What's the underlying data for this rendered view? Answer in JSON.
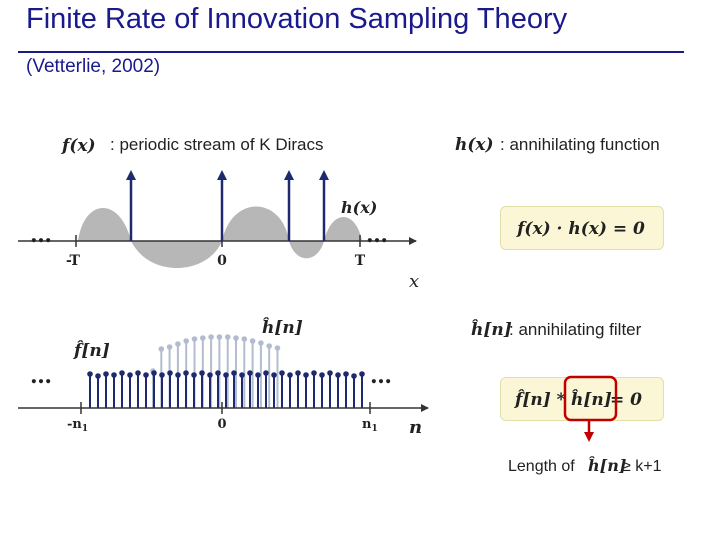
{
  "slide": {
    "title": "Finite Rate of Innovation Sampling Theory",
    "subtitle": "(Vetterlie, 2002)"
  },
  "top_plot": {
    "signal_symbol": "f(x)",
    "signal_desc": " : periodic stream of K Diracs",
    "annihilator_symbol": "h(x)",
    "ellipsis_left": "…",
    "ellipsis_right": "…",
    "tick_left": "-T",
    "tick_center": "0",
    "tick_right": "T",
    "axis_var": "x"
  },
  "right_panel": {
    "h_symbol": "h(x)",
    "h_desc": " : annihilating function",
    "eq1": "f(x) · h(x) = 0",
    "hn_symbol": "ĥ[n]",
    "hn_desc": " : annihilating filter",
    "eq2_left": "f̂[n] * ",
    "eq2_mid": "ĥ[n]",
    "eq2_right": " = 0",
    "length_label": "Length of ",
    "length_symbol": "ĥ[n]",
    "length_cond": " ≥ k+1"
  },
  "bottom_plot": {
    "f_label": "f̂[n]",
    "h_label": "ĥ[n]",
    "ellipsis_left": "…",
    "ellipsis_right": "…",
    "tick_left": "-n",
    "tick_left_sub": "1",
    "tick_center": "0",
    "tick_right": "n",
    "tick_right_sub": "1",
    "axis_var": "n"
  },
  "colors": {
    "title": "#1a1a8c",
    "stem_dark": "#1f2a6e",
    "stem_light": "#b3bccf",
    "grey_fill": "#b7b7b7",
    "highlight": "#c00000"
  }
}
